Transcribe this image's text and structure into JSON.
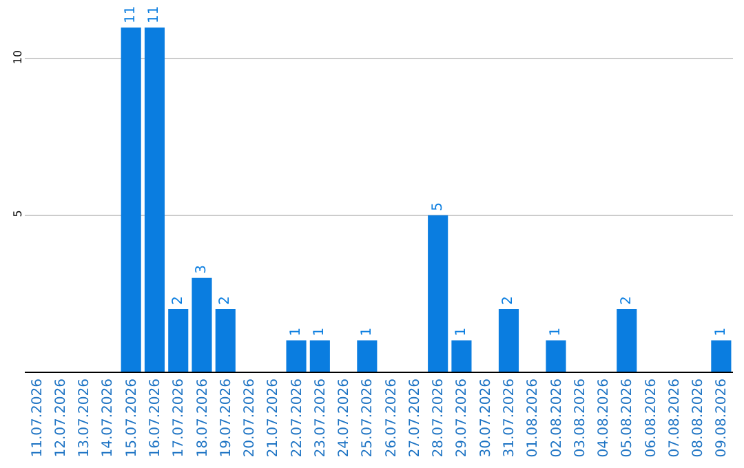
{
  "chart_data": {
    "type": "bar",
    "categories": [
      "11.07.2026",
      "12.07.2026",
      "13.07.2026",
      "14.07.2026",
      "15.07.2026",
      "16.07.2026",
      "17.07.2026",
      "18.07.2026",
      "19.07.2026",
      "20.07.2026",
      "21.07.2026",
      "22.07.2026",
      "23.07.2026",
      "24.07.2026",
      "25.07.2026",
      "26.07.2026",
      "27.07.2026",
      "28.07.2026",
      "29.07.2026",
      "30.07.2026",
      "31.07.2026",
      "01.08.2026",
      "02.08.2026",
      "03.08.2026",
      "04.08.2026",
      "05.08.2026",
      "06.08.2026",
      "07.08.2026",
      "08.08.2026",
      "09.08.2026"
    ],
    "values": [
      0,
      0,
      0,
      0,
      11,
      11,
      2,
      3,
      2,
      0,
      0,
      1,
      1,
      0,
      1,
      0,
      0,
      5,
      1,
      0,
      2,
      0,
      1,
      0,
      0,
      2,
      0,
      0,
      0,
      1
    ],
    "value_labels": [
      null,
      null,
      null,
      null,
      "11",
      "11",
      "2",
      "3",
      "2",
      null,
      null,
      "1",
      "1",
      null,
      "1",
      null,
      null,
      "5",
      "1",
      null,
      "2",
      null,
      "1",
      null,
      null,
      "2",
      null,
      null,
      null,
      "1"
    ],
    "color": "#0a7de0",
    "ylim": [
      0,
      11
    ],
    "yticks": [
      5,
      10
    ],
    "grid": "y",
    "legend": false
  }
}
